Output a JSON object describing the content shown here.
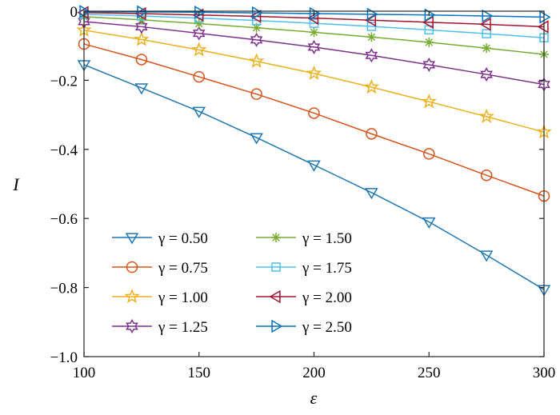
{
  "chart_data": {
    "type": "line",
    "title": "",
    "xlabel": "ε",
    "ylabel": "I",
    "xlim": [
      100,
      300
    ],
    "ylim": [
      -1.0,
      0.0
    ],
    "x_ticks": [
      100,
      150,
      200,
      250,
      300
    ],
    "x_tick_labels": [
      "100",
      "150",
      "200",
      "250",
      "300"
    ],
    "y_ticks": [
      0,
      -0.2,
      -0.4,
      -0.6,
      -0.8,
      -1.0
    ],
    "y_tick_labels": [
      "0",
      "−0.2",
      "−0.4",
      "−0.6",
      "−0.8",
      "−1.0"
    ],
    "grid": false,
    "legend_position": "bottom-left",
    "x": [
      100,
      125,
      150,
      175,
      200,
      225,
      250,
      275,
      300
    ],
    "series": [
      {
        "name": "γ = 0.50",
        "legend_label": "γ = 0.50",
        "color": "#1f77b4",
        "marker": "triangle-down",
        "values": [
          -0.155,
          -0.222,
          -0.29,
          -0.366,
          -0.445,
          -0.525,
          -0.61,
          -0.706,
          -0.806
        ]
      },
      {
        "name": "γ = 0.75",
        "legend_label": "γ = 0.75",
        "color": "#d95319",
        "marker": "circle",
        "values": [
          -0.095,
          -0.14,
          -0.19,
          -0.24,
          -0.295,
          -0.355,
          -0.413,
          -0.475,
          -0.535
        ]
      },
      {
        "name": "γ = 1.00",
        "legend_label": "γ = 1.00",
        "color": "#edb120",
        "marker": "star5",
        "values": [
          -0.055,
          -0.082,
          -0.112,
          -0.145,
          -0.18,
          -0.22,
          -0.262,
          -0.305,
          -0.35
        ]
      },
      {
        "name": "γ = 1.25",
        "legend_label": "γ = 1.25",
        "color": "#7e2f8e",
        "marker": "star6",
        "values": [
          -0.03,
          -0.045,
          -0.064,
          -0.083,
          -0.104,
          -0.128,
          -0.155,
          -0.183,
          -0.212
        ]
      },
      {
        "name": "γ = 1.50",
        "legend_label": "γ = 1.50",
        "color": "#77ac30",
        "marker": "asterisk",
        "values": [
          -0.016,
          -0.025,
          -0.036,
          -0.048,
          -0.061,
          -0.075,
          -0.09,
          -0.107,
          -0.125
        ]
      },
      {
        "name": "γ = 1.75",
        "legend_label": "γ = 1.75",
        "color": "#4dbeee",
        "marker": "square",
        "values": [
          -0.009,
          -0.014,
          -0.02,
          -0.027,
          -0.035,
          -0.044,
          -0.054,
          -0.065,
          -0.077
        ]
      },
      {
        "name": "γ = 2.00",
        "legend_label": "γ = 2.00",
        "color": "#a2142f",
        "marker": "triangle-left",
        "values": [
          -0.004,
          -0.007,
          -0.011,
          -0.015,
          -0.02,
          -0.026,
          -0.032,
          -0.038,
          -0.045
        ]
      },
      {
        "name": "γ = 2.50",
        "legend_label": "γ = 2.50",
        "color": "#0072bd",
        "marker": "triangle-right",
        "values": [
          -0.001,
          -0.002,
          -0.003,
          -0.005,
          -0.007,
          -0.009,
          -0.011,
          -0.014,
          -0.017
        ]
      }
    ]
  }
}
